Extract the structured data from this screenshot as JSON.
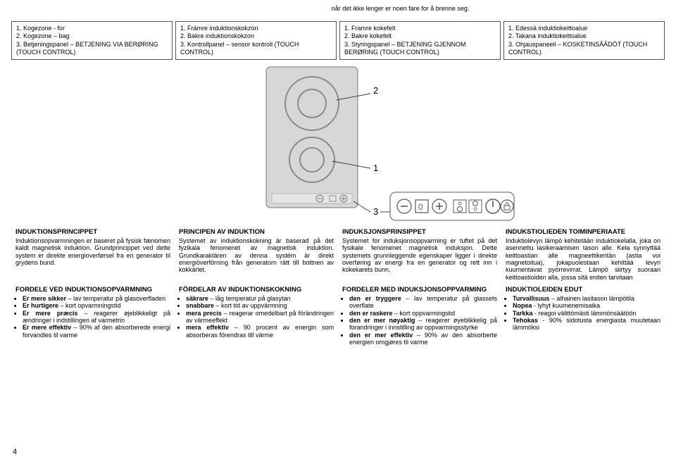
{
  "topFragment": "når det ikke lenger er noen fare for å brenne seg.",
  "legend": {
    "c1": [
      "1. Kogezone - for",
      "2. Kogezone – bag",
      "3. Betjeningspanel – BETJENING VIA BERØRING (TOUCH CONTROL)"
    ],
    "c2": [
      "1. Främre induktionskokzon",
      "2. Bakre induktionskokzon",
      "3. Kontrollpanel – sensor kontroll (TOUCH CONTROL)"
    ],
    "c3": [
      "1. Framre kokefelt",
      "2. Bakre kokefelt",
      "3. Styringspanel – BETJENING GJENNOM BERØRING (TOUCH CONTROL)"
    ],
    "c4": [
      "1. Edessä induktiokeittoalue",
      "2. Takana induktiokeittoalue",
      "3. Ohjauspaneeli – KOSKETINSÄÄDÖT (TOUCH CONTROL)"
    ]
  },
  "diagram": {
    "labels": {
      "n1": "1",
      "n2": "2",
      "n3": "3"
    },
    "bg": "#d7d7d7",
    "stroke": "#777",
    "ring": "#8a8a8a",
    "dark": "#333"
  },
  "principle": {
    "c1": {
      "h": "INDUKTIONSPRINCIPPET",
      "p": "Induktionsopvarmningen er baseret på fysisk fænomen kaldt magnetisk induktion. Grundprincippet ved dette system er direkte energioverførsel fra en generator til grydens bund."
    },
    "c2": {
      "h": "PRINCIPEN AV INDUKTION",
      "p": "Systemet av induktionskokning är baserad på det fyzikala fenomenet av magnetisk induktion. Grundkaraktären av denna systém är direkt energiöverförning från generatorn rätt till bottnen av kokkärlet."
    },
    "c3": {
      "h": "INDUKSJONSPRINSIPPET",
      "p": "Systemet for induksjonsoppvarming er tuftet på det fysikale fenomenet magnetisk induksjon. Dette systemets grunnleggende egenskaper ligger i direkte overføring av energi fra en generator og rett inn i kokekarets bunn."
    },
    "c4": {
      "h": "INDUKSTIOLIEDEN TOIMINPERIAATE",
      "p": "Induktiolevyn lämpö kehitetään induktiokelalla, joka on asennettu lasikeraamisen tason alle. Kela synnyttää keittoastian alle magneettikentän (astia voi magnetoitua), jokapuolestaan kehittää levyn kuumentavat pyörrevirrat. Lämpö siirtyy suoraan keittoastioiden alla, jossa sitä eniten tarvitaan"
    }
  },
  "advantages": {
    "c1": {
      "h": "FORDELE VED INDUKTIONSOPVARMNING",
      "items": [
        "Er mere sikker – lav temperatur på glasoverfladen",
        "Er hurtigere – kort opvarmningstid",
        "Er mere præcis – reagerer øjeblikkeligt på ændringer i indstillingen af varmetrin",
        "Er mere effektiv – 90% af den absorberede energi forvandles til varme"
      ]
    },
    "c2": {
      "h": "FÖRDELAR AV INDUKTIONSKOKNING",
      "items": [
        "säkrare – låg temperatur på glasytan",
        "snabbare – kort tid av uppvärmning",
        "mera precis – reagerar omedelbart på förändringen av värmeeffekt",
        "mera effektiv – 90 procent av energin som absorberas förendras till värme"
      ]
    },
    "c3": {
      "h": "FORDELER MED INDUKSJONSOPPVARMING",
      "items": [
        "den er tryggere – lav temperatur på glassets overflate",
        "den er raskere – kort oppvarmingstid",
        "den er mer nøyaktig – reagerer øyeblikkelig på forandringer i innstilling av oppvarmingsstyrke",
        "den er mer effektiv – 90% av den absorberte energien omgjøres til varme"
      ]
    },
    "c4": {
      "h": "INDUKTIOLEIDEN EDUT",
      "items": [
        "Turvallisuus – alhainen lasitason lämpötila",
        "Nopea - lyhyt kuumenemisaika",
        "Tarkka - reagoi välittömästi lämmönsäätöön",
        "Tehokas - 90% sidotusta energiasta muutetaan lämmöksi"
      ]
    }
  },
  "pageNum": "4"
}
